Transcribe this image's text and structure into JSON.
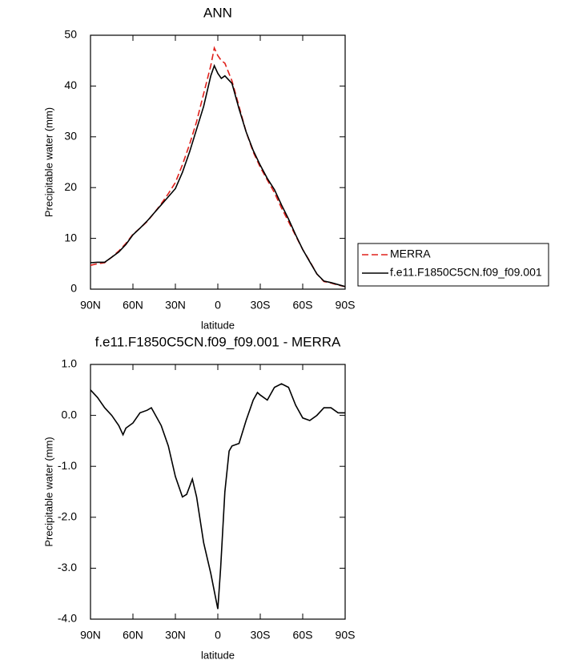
{
  "chart_data": [
    {
      "type": "line",
      "title": "ANN",
      "xlabel": "latitude",
      "ylabel": "Precipitable water (mm)",
      "x": [
        90,
        85,
        80,
        75,
        70,
        65,
        60,
        55,
        50,
        45,
        40,
        35,
        30,
        25,
        20,
        15,
        10,
        5,
        2.5,
        0,
        -2.5,
        -5,
        -10,
        -15,
        -20,
        -25,
        -30,
        -35,
        -40,
        -45,
        -50,
        -55,
        -60,
        -65,
        -70,
        -75,
        -80,
        -85,
        -90
      ],
      "series": [
        {
          "name": "MERRA",
          "color": "#e0201b",
          "dash": true,
          "values": [
            4.7,
            5.0,
            5.2,
            6.3,
            7.5,
            9.0,
            10.8,
            12.0,
            13.3,
            15.0,
            16.8,
            18.8,
            21,
            24.5,
            28.5,
            33,
            38.5,
            44,
            47.5,
            46,
            45,
            44.5,
            41,
            36,
            31,
            27,
            24,
            21.5,
            19,
            16,
            13.3,
            10.5,
            7.8,
            5.5,
            3.0,
            1.5,
            1.2,
            0.8,
            0.5
          ]
        },
        {
          "name": "f.e11.F1850C5CN.f09_f09.001",
          "color": "#000000",
          "dash": false,
          "values": [
            5.2,
            5.3,
            5.3,
            6.3,
            7.3,
            8.8,
            10.7,
            12.0,
            13.4,
            15.0,
            16.6,
            18.2,
            19.8,
            23,
            27,
            31.5,
            36,
            42,
            44,
            42.5,
            41.5,
            42,
            40.5,
            35.5,
            31,
            27.3,
            24.4,
            21.8,
            19.6,
            16.6,
            13.8,
            10.7,
            7.8,
            5.4,
            3.0,
            1.6,
            1.3,
            0.9,
            0.5
          ]
        }
      ],
      "xlim": [
        90,
        -90
      ],
      "xticks": [
        {
          "value": 90,
          "label": "90N"
        },
        {
          "value": 60,
          "label": "60N"
        },
        {
          "value": 30,
          "label": "30N"
        },
        0,
        {
          "value": -30,
          "label": "30S"
        },
        {
          "value": -60,
          "label": "60S"
        },
        {
          "value": -90,
          "label": "90S"
        }
      ],
      "ylim": [
        0,
        50
      ],
      "yticks": [
        0,
        10,
        20,
        30,
        40,
        50
      ],
      "legend": "right"
    },
    {
      "type": "line",
      "title": "f.e11.F1850C5CN.f09_f09.001 - MERRA",
      "xlabel": "latitude",
      "ylabel": "Precipitable water (mm)",
      "x": [
        90,
        85,
        80,
        75,
        70,
        67,
        65,
        60,
        55,
        50,
        47,
        45,
        40,
        35,
        30,
        25,
        22,
        20,
        18,
        15,
        10,
        5,
        0,
        -2,
        -5,
        -8,
        -10,
        -15,
        -20,
        -25,
        -28,
        -30,
        -35,
        -40,
        -45,
        -50,
        -55,
        -60,
        -65,
        -70,
        -75,
        -80,
        -85,
        -90
      ],
      "values": [
        0.5,
        0.35,
        0.15,
        0.0,
        -0.2,
        -0.38,
        -0.25,
        -0.15,
        0.05,
        0.1,
        0.15,
        0.05,
        -0.2,
        -0.6,
        -1.2,
        -1.6,
        -1.55,
        -1.4,
        -1.25,
        -1.6,
        -2.5,
        -3.1,
        -3.8,
        -3.0,
        -1.5,
        -0.7,
        -0.6,
        -0.55,
        -0.1,
        0.3,
        0.45,
        0.4,
        0.3,
        0.55,
        0.62,
        0.55,
        0.2,
        -0.05,
        -0.1,
        0.0,
        0.15,
        0.15,
        0.05,
        0.05
      ],
      "color": "#000000",
      "xlim": [
        90,
        -90
      ],
      "xticks": [
        {
          "value": 90,
          "label": "90N"
        },
        {
          "value": 60,
          "label": "60N"
        },
        {
          "value": 30,
          "label": "30N"
        },
        0,
        {
          "value": -30,
          "label": "30S"
        },
        {
          "value": -60,
          "label": "60S"
        },
        {
          "value": -90,
          "label": "90S"
        }
      ],
      "ylim": [
        -4,
        1
      ],
      "yticks": [
        {
          "value": 1,
          "label": "1.0"
        },
        {
          "value": 0,
          "label": "0.0"
        },
        {
          "value": -1,
          "label": "-1.0"
        },
        {
          "value": -2,
          "label": "-2.0"
        },
        {
          "value": -3,
          "label": "-3.0"
        },
        {
          "value": -4,
          "label": "-4.0"
        }
      ]
    }
  ]
}
